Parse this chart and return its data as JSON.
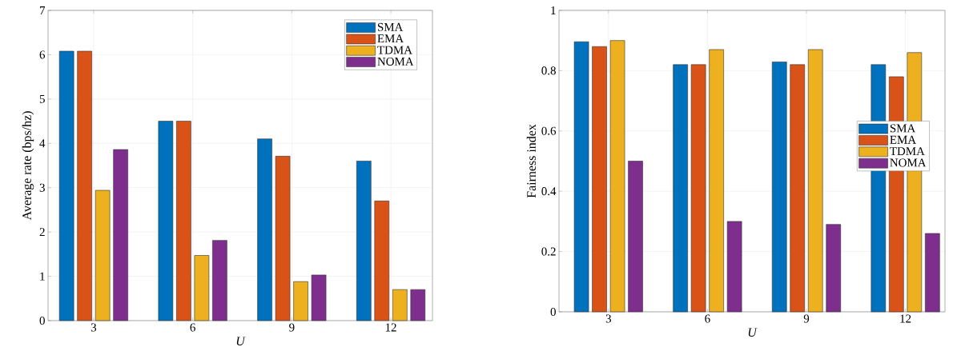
{
  "chart_data": [
    {
      "type": "bar",
      "xlabel": "U",
      "ylabel": "Average rate (bps/hz)",
      "categories": [
        "3",
        "6",
        "9",
        "12"
      ],
      "series": [
        {
          "name": "SMA",
          "color": "#0072bd",
          "values": [
            6.08,
            4.5,
            4.1,
            3.6
          ]
        },
        {
          "name": "EMA",
          "color": "#d95319",
          "values": [
            6.08,
            4.5,
            3.71,
            2.7
          ]
        },
        {
          "name": "TDMA",
          "color": "#edb120",
          "values": [
            2.94,
            1.47,
            0.88,
            0.7
          ]
        },
        {
          "name": "NOMA",
          "color": "#7e2f8e",
          "values": [
            3.86,
            1.81,
            1.03,
            0.7
          ]
        }
      ],
      "ylim": [
        0,
        7
      ],
      "yticks": [
        0,
        1,
        2,
        3,
        4,
        5,
        6,
        7
      ],
      "grid": true,
      "legend": "top right"
    },
    {
      "type": "bar",
      "xlabel": "U",
      "ylabel": "Fairness index",
      "categories": [
        "3",
        "6",
        "9",
        "12"
      ],
      "series": [
        {
          "name": "SMA",
          "color": "#0072bd",
          "values": [
            0.896,
            0.82,
            0.829,
            0.82
          ]
        },
        {
          "name": "EMA",
          "color": "#d95319",
          "values": [
            0.88,
            0.82,
            0.82,
            0.78
          ]
        },
        {
          "name": "TDMA",
          "color": "#edb120",
          "values": [
            0.9,
            0.87,
            0.87,
            0.86
          ]
        },
        {
          "name": "NOMA",
          "color": "#7e2f8e",
          "values": [
            0.5,
            0.3,
            0.29,
            0.26
          ]
        }
      ],
      "ylim": [
        0,
        1
      ],
      "yticks": [
        0,
        0.2,
        0.4,
        0.6,
        0.8,
        1
      ],
      "grid": true,
      "legend": "right"
    }
  ]
}
